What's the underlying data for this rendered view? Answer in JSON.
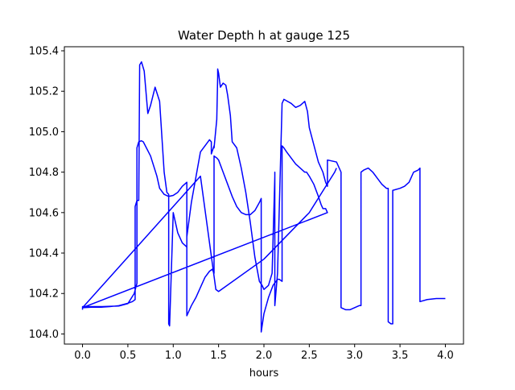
{
  "chart_data": {
    "type": "line",
    "title": "Water Depth h at gauge 125",
    "xlabel": "hours",
    "ylabel": "",
    "xlim": [
      -0.2,
      4.2
    ],
    "ylim": [
      103.95,
      105.42
    ],
    "xticks": [
      0.0,
      0.5,
      1.0,
      1.5,
      2.0,
      2.5,
      3.0,
      3.5,
      4.0
    ],
    "xtick_labels": [
      "0.0",
      "0.5",
      "1.0",
      "1.5",
      "2.0",
      "2.5",
      "3.0",
      "3.5",
      "4.0"
    ],
    "yticks": [
      104.0,
      104.2,
      104.4,
      104.6,
      104.8,
      105.0,
      105.2,
      105.4
    ],
    "ytick_labels": [
      "104.0",
      "104.2",
      "104.4",
      "104.6",
      "104.8",
      "105.0",
      "105.2",
      "105.4"
    ],
    "grid": false,
    "legend": "none",
    "line_color": "#0000ff",
    "series": [
      {
        "x": [
          0.0,
          0.0,
          0.2,
          0.4,
          0.5,
          0.57,
          0.6,
          0.6,
          0.62,
          0.65,
          0.67,
          0.75,
          0.82,
          0.85,
          0.9,
          0.95,
          1.0,
          1.05,
          1.1,
          1.15,
          1.15,
          1.17,
          1.2,
          1.25,
          1.3,
          1.35,
          1.4,
          1.43,
          1.45,
          1.45,
          1.48,
          1.5,
          1.55,
          1.6,
          1.65,
          1.7,
          1.75,
          1.8,
          1.85,
          1.9,
          1.95,
          1.97,
          1.97,
          1.97,
          2.0,
          2.05,
          2.1,
          2.15,
          2.17,
          2.2,
          2.2,
          2.22,
          2.25,
          2.3,
          2.35,
          2.4,
          2.45,
          2.47,
          2.5,
          2.55,
          2.6,
          2.63,
          2.65,
          2.68,
          2.7,
          0.0,
          0.1,
          0.2,
          0.3,
          0.4,
          0.5,
          0.55,
          0.58,
          0.58,
          0.6,
          0.62,
          0.63,
          0.65,
          0.68,
          0.72,
          0.75,
          0.8,
          0.85,
          0.9,
          0.93,
          0.95,
          0.95,
          0.96,
          1.0,
          1.05,
          1.1,
          1.15,
          1.15,
          1.2,
          1.3,
          1.4,
          1.42,
          1.42,
          1.45,
          1.45,
          1.48,
          1.49,
          1.49,
          1.5,
          1.52,
          1.55,
          1.58,
          1.6,
          1.63,
          1.65,
          1.7,
          1.75,
          1.8,
          1.85,
          1.9,
          1.95,
          1.98,
          2.0,
          2.05,
          2.09,
          2.12,
          2.12,
          2.12,
          2.15,
          2.2,
          2.22,
          2.3,
          2.35,
          2.4,
          2.45,
          2.48,
          2.5,
          2.6,
          2.65,
          2.68,
          2.7,
          2.7,
          2.8,
          2.85,
          2.85,
          2.9,
          2.95,
          3.0,
          3.05,
          3.07,
          3.07,
          3.1,
          3.15,
          3.2,
          3.25,
          3.3,
          3.35,
          3.37,
          3.37,
          3.4,
          3.42,
          3.42,
          3.5,
          3.55,
          3.6,
          3.65,
          3.7,
          3.72,
          3.72,
          3.8,
          3.9,
          4.0
        ],
        "y": [
          104.12,
          104.135,
          104.135,
          104.138,
          104.15,
          104.2,
          104.25,
          104.92,
          104.95,
          104.955,
          104.95,
          104.88,
          104.78,
          104.72,
          104.69,
          104.68,
          104.685,
          104.7,
          104.73,
          104.75,
          104.09,
          104.11,
          104.14,
          104.18,
          104.23,
          104.28,
          104.31,
          104.32,
          104.3,
          104.88,
          104.87,
          104.86,
          104.8,
          104.74,
          104.68,
          104.63,
          104.6,
          104.59,
          104.59,
          104.61,
          104.65,
          104.67,
          104.01,
          104.01,
          104.1,
          104.18,
          104.24,
          104.27,
          104.27,
          104.26,
          104.93,
          104.92,
          104.9,
          104.87,
          104.84,
          104.82,
          104.8,
          104.8,
          104.78,
          104.74,
          104.68,
          104.64,
          104.62,
          104.62,
          104.6,
          104.13,
          104.132,
          104.132,
          104.135,
          104.14,
          104.152,
          104.16,
          104.17,
          104.63,
          104.66,
          104.66,
          105.33,
          105.345,
          105.3,
          105.09,
          105.13,
          105.22,
          105.15,
          104.8,
          104.7,
          104.69,
          104.05,
          104.04,
          104.6,
          104.5,
          104.45,
          104.43,
          104.48,
          104.65,
          104.9,
          104.96,
          104.95,
          104.89,
          104.93,
          104.92,
          105.06,
          105.27,
          105.31,
          105.29,
          105.22,
          105.24,
          105.23,
          105.18,
          105.08,
          104.95,
          104.92,
          104.82,
          104.7,
          104.55,
          104.38,
          104.26,
          104.24,
          104.22,
          104.24,
          104.3,
          104.78,
          104.8,
          104.14,
          104.3,
          105.14,
          105.16,
          105.14,
          105.12,
          105.13,
          105.15,
          105.1,
          105.02,
          104.85,
          104.8,
          104.75,
          104.73,
          104.86,
          104.85,
          104.8,
          104.13,
          104.12,
          104.12,
          104.13,
          104.14,
          104.14,
          104.8,
          104.81,
          104.82,
          104.8,
          104.77,
          104.74,
          104.72,
          104.72,
          104.06,
          104.05,
          104.05,
          104.71,
          104.72,
          104.73,
          104.75,
          104.8,
          104.81,
          104.82,
          104.16,
          104.17,
          104.175,
          104.175
        ]
      },
      {
        "x": [
          0.0,
          1.3,
          1.47,
          1.5,
          2.0,
          2.5,
          2.78,
          2.8
        ],
        "y": [
          104.13,
          104.78,
          104.22,
          104.21,
          104.37,
          104.6,
          104.8,
          104.82
        ]
      }
    ]
  }
}
